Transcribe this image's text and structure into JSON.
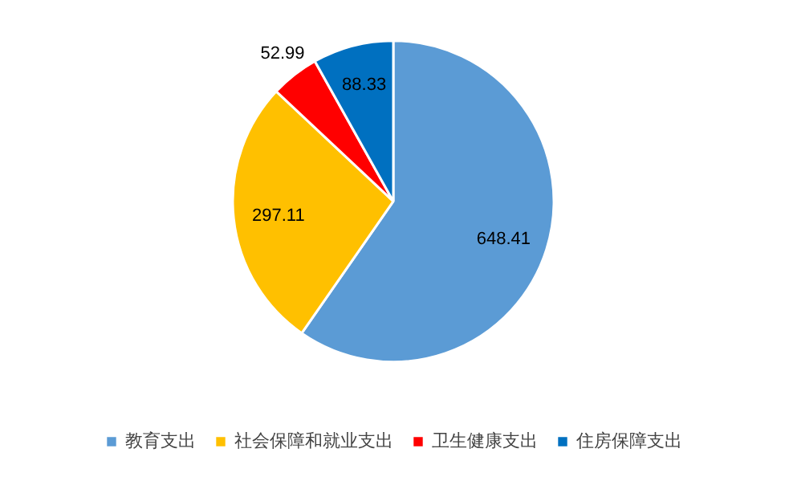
{
  "chart_data": {
    "type": "pie",
    "categories": [
      "教育支出",
      "社会保障和就业支出",
      "卫生健康支出",
      "住房保障支出"
    ],
    "values": [
      648.41,
      297.11,
      52.99,
      88.33
    ],
    "colors": [
      "#5b9bd5",
      "#ffc000",
      "#ff0000",
      "#0070c0"
    ],
    "data_labels": true,
    "legend": "bottom"
  }
}
